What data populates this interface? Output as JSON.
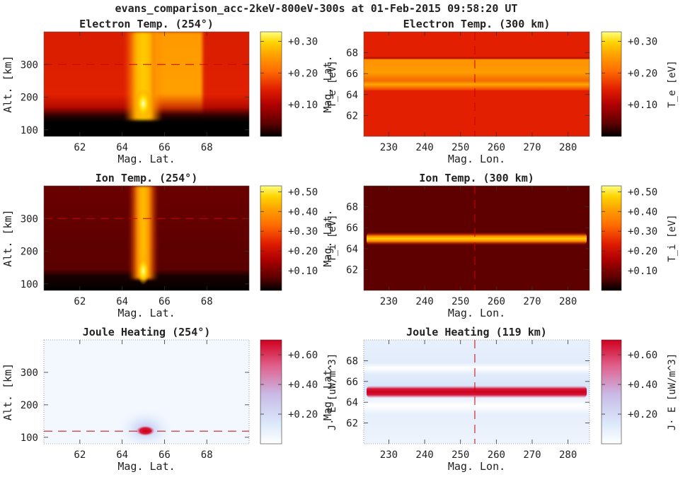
{
  "figure_title": "evans_comparison_acc-2keV-800eV-300s at 01-Feb-2015 09:58:20 UT",
  "colors": {
    "heat_map": [
      "#000000",
      "#5a0000",
      "#b00000",
      "#e01e00",
      "#ff6a00",
      "#ffa200",
      "#ffd400",
      "#ffff80"
    ],
    "diverging_map": [
      "#ffffff",
      "#dbe8fb",
      "#c9b9e6",
      "#e0608c",
      "#d0001e"
    ],
    "cut_line": "#cc0000"
  },
  "chart_data": [
    {
      "id": "te-lat",
      "type": "heatmap",
      "title": "Electron Temp. (254°)",
      "xlabel": "Mag. Lat.",
      "ylabel": "Alt. [km]",
      "xlim": [
        60.3,
        70.0
      ],
      "ylim": [
        80,
        400
      ],
      "xticks": [
        62,
        64,
        66,
        68
      ],
      "yticks": [
        100,
        200,
        300
      ],
      "cut_line": {
        "orientation": "horizontal",
        "value": 300
      },
      "colormap": "heat",
      "colorbar": {
        "label": "T_e [eV]",
        "ticks": [
          "+0.10",
          "+0.20",
          "+0.30"
        ],
        "tick_values": [
          0.1,
          0.2,
          0.3
        ],
        "range": [
          0.0,
          0.33
        ]
      }
    },
    {
      "id": "te-lon",
      "type": "heatmap",
      "title": "Electron Temp. (300 km)",
      "xlabel": "Mag. Lon.",
      "ylabel": "Mag. Lat.",
      "xlim": [
        223,
        286
      ],
      "ylim": [
        60.0,
        70.0
      ],
      "xticks": [
        230,
        240,
        250,
        260,
        270,
        280
      ],
      "yticks": [
        62,
        64,
        66,
        68
      ],
      "cut_line": {
        "orientation": "vertical",
        "value": 254
      },
      "colormap": "heat",
      "colorbar": {
        "label": "T_e [eV]",
        "ticks": [
          "+0.10",
          "+0.20",
          "+0.30"
        ],
        "tick_values": [
          0.1,
          0.2,
          0.3
        ],
        "range": [
          0.0,
          0.33
        ]
      }
    },
    {
      "id": "ti-lat",
      "type": "heatmap",
      "title": "Ion Temp. (254°)",
      "xlabel": "Mag. Lat.",
      "ylabel": "Alt. [km]",
      "xlim": [
        60.3,
        70.0
      ],
      "ylim": [
        80,
        400
      ],
      "xticks": [
        62,
        64,
        66,
        68
      ],
      "yticks": [
        100,
        200,
        300
      ],
      "cut_line": {
        "orientation": "horizontal",
        "value": 300
      },
      "colormap": "heat",
      "colorbar": {
        "label": "T_i [eV]",
        "ticks": [
          "+0.10",
          "+0.20",
          "+0.30",
          "+0.40",
          "+0.50"
        ],
        "tick_values": [
          0.1,
          0.2,
          0.3,
          0.4,
          0.5
        ],
        "range": [
          0.0,
          0.53
        ]
      }
    },
    {
      "id": "ti-lon",
      "type": "heatmap",
      "title": "Ion Temp. (300 km)",
      "xlabel": "Mag. Lon.",
      "ylabel": "Mag. Lat.",
      "xlim": [
        223,
        286
      ],
      "ylim": [
        60.0,
        70.0
      ],
      "xticks": [
        230,
        240,
        250,
        260,
        270,
        280
      ],
      "yticks": [
        62,
        64,
        66,
        68
      ],
      "cut_line": {
        "orientation": "vertical",
        "value": 254
      },
      "colormap": "heat",
      "colorbar": {
        "label": "T_i [eV]",
        "ticks": [
          "+0.10",
          "+0.20",
          "+0.30",
          "+0.40",
          "+0.50"
        ],
        "tick_values": [
          0.1,
          0.2,
          0.3,
          0.4,
          0.5
        ],
        "range": [
          0.0,
          0.53
        ]
      }
    },
    {
      "id": "jh-lat",
      "type": "heatmap",
      "title": "Joule Heating (254°)",
      "xlabel": "Mag. Lat.",
      "ylabel": "Alt. [km]",
      "xlim": [
        60.3,
        70.0
      ],
      "ylim": [
        80,
        400
      ],
      "xticks": [
        62,
        64,
        66,
        68
      ],
      "yticks": [
        100,
        200,
        300
      ],
      "cut_line": {
        "orientation": "horizontal",
        "value": 119
      },
      "colormap": "diverging",
      "colorbar": {
        "label": "J· E [uW/m^3]",
        "ticks": [
          "+0.20",
          "+0.40",
          "+0.60"
        ],
        "tick_values": [
          0.2,
          0.4,
          0.6
        ],
        "range": [
          0.0,
          0.7
        ]
      }
    },
    {
      "id": "jh-lon",
      "type": "heatmap",
      "title": "Joule Heating (119 km)",
      "xlabel": "Mag. Lon.",
      "ylabel": "Mag. Lat.",
      "xlim": [
        223,
        286
      ],
      "ylim": [
        60.0,
        70.0
      ],
      "xticks": [
        230,
        240,
        250,
        260,
        270,
        280
      ],
      "yticks": [
        62,
        64,
        66,
        68
      ],
      "cut_line": {
        "orientation": "vertical",
        "value": 254
      },
      "colormap": "diverging",
      "colorbar": {
        "label": "J· E [uW/m^3]",
        "ticks": [
          "+0.20",
          "+0.40",
          "+0.60"
        ],
        "tick_values": [
          0.2,
          0.4,
          0.6
        ],
        "range": [
          0.0,
          0.7
        ]
      }
    }
  ]
}
